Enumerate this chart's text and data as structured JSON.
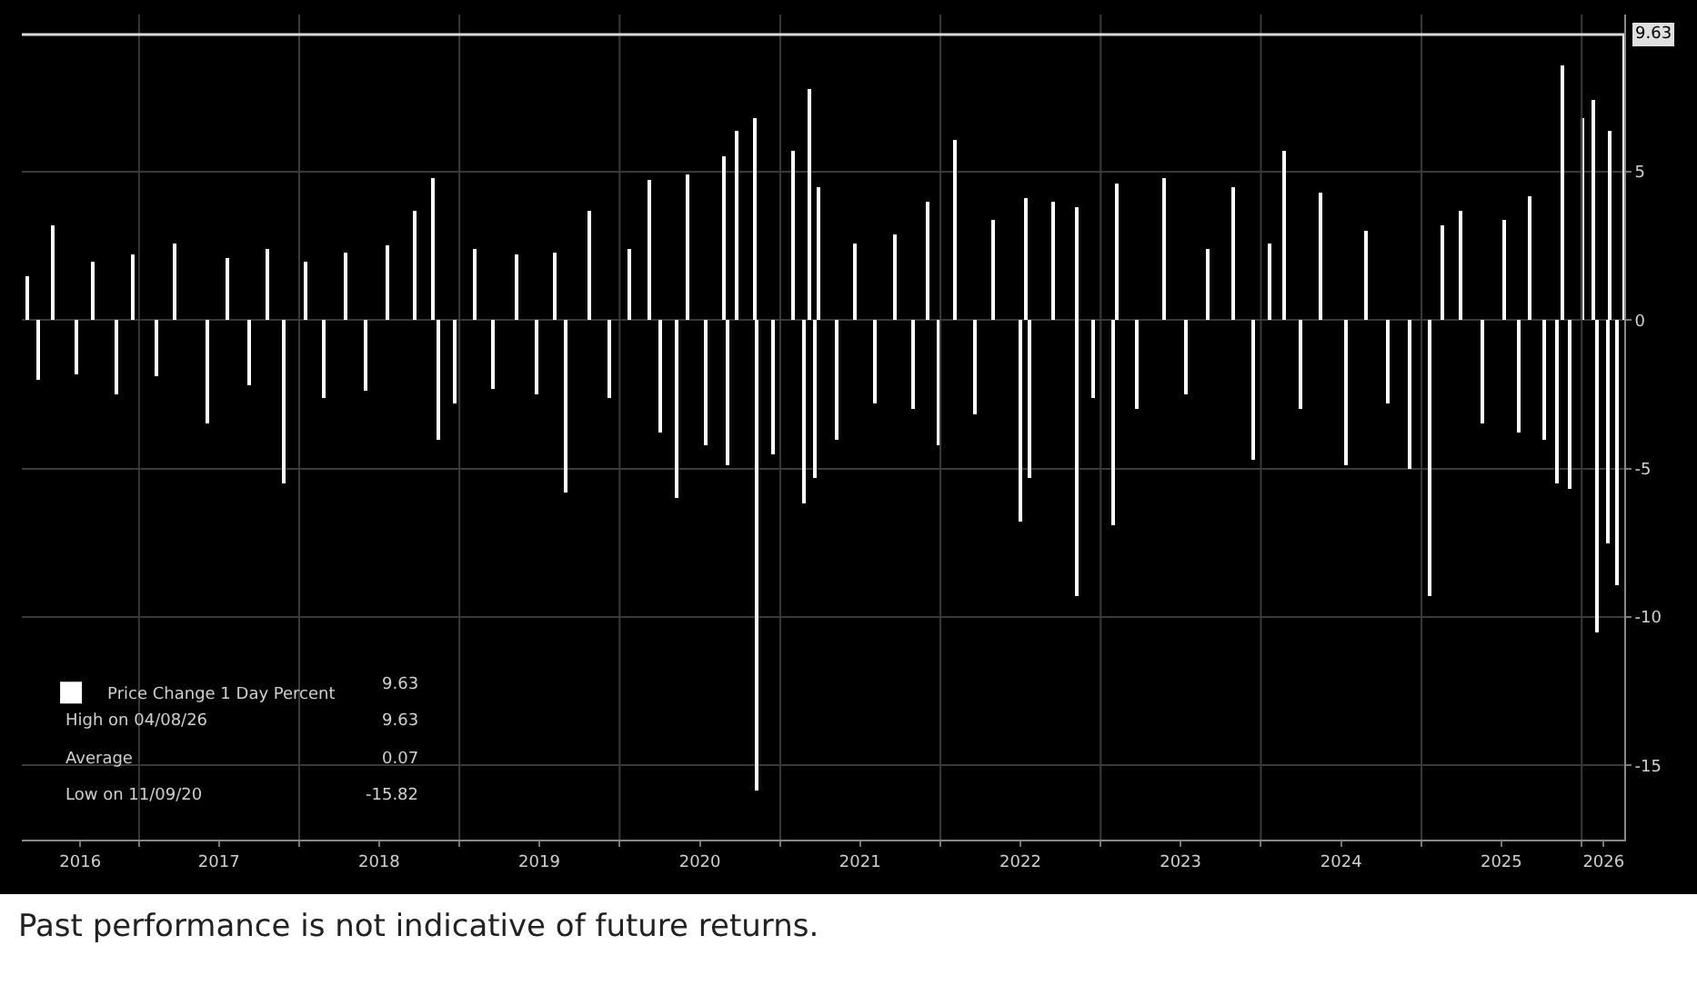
{
  "chart_data": {
    "type": "bar",
    "x": [
      "2016-04-20",
      "2016-05-15",
      "2016-06-20",
      "2016-08-10",
      "2016-09-20",
      "2016-11-10",
      "2016-12-20",
      "2017-02-10",
      "2017-03-25",
      "2017-06-06",
      "2017-07-20",
      "2017-09-10",
      "2017-10-20",
      "2017-11-27",
      "2018-01-15",
      "2018-02-28",
      "2018-04-15",
      "2018-06-01",
      "2018-07-20",
      "2018-09-23",
      "2018-11-02",
      "2018-11-15",
      "2018-12-20",
      "2019-02-05",
      "2019-03-20",
      "2019-05-10",
      "2019-06-25",
      "2019-08-05",
      "2019-09-02",
      "2019-10-23",
      "2019-12-10",
      "2020-01-25",
      "2020-03-11",
      "2020-04-05",
      "2020-05-12",
      "2020-06-06",
      "2020-07-15",
      "2020-08-24",
      "2020-09-02",
      "2020-09-23",
      "2020-11-04",
      "2020-11-09",
      "2020-12-15",
      "2021-01-30",
      "2021-02-24",
      "2021-03-07",
      "2021-03-20",
      "2021-03-28",
      "2021-05-08",
      "2021-06-20",
      "2021-08-05",
      "2021-09-20",
      "2021-11-01",
      "2021-12-05",
      "2021-12-29",
      "2022-02-03",
      "2022-03-20",
      "2022-05-01",
      "2022-07-02",
      "2022-07-13",
      "2022-07-22",
      "2022-09-14",
      "2022-11-06",
      "2022-11-10",
      "2022-12-15",
      "2023-01-30",
      "2023-02-07",
      "2023-03-25",
      "2023-05-26",
      "2023-07-15",
      "2023-09-01",
      "2023-10-31",
      "2023-12-14",
      "2024-01-20",
      "2024-02-23",
      "2024-04-01",
      "2024-05-16",
      "2024-07-13",
      "2024-08-30",
      "2024-10-15",
      "2024-12-06",
      "2025-01-22",
      "2025-02-20",
      "2025-04-02",
      "2025-05-20",
      "2025-07-10",
      "2025-08-10",
      "2025-09-06",
      "2025-10-10",
      "2025-11-06",
      "2025-11-20",
      "2025-12-06",
      "2026-01-04",
      "2026-01-28",
      "2026-02-04",
      "2026-03-03",
      "2026-03-06",
      "2026-03-22",
      "2026-04-08"
    ],
    "series": [
      {
        "name": "Price Change 1 Day Percent",
        "color": "#ffffff",
        "values": [
          1.5,
          -2.0,
          3.2,
          -1.8,
          2.0,
          -2.5,
          2.2,
          -1.9,
          2.6,
          -3.5,
          2.1,
          -2.2,
          2.4,
          -5.5,
          2.0,
          -2.6,
          2.3,
          -2.4,
          2.5,
          3.7,
          4.8,
          -4.0,
          -2.8,
          2.4,
          -2.3,
          2.2,
          -2.5,
          2.3,
          -5.8,
          3.7,
          -2.6,
          2.4,
          4.7,
          -3.8,
          -6.0,
          4.9,
          -4.2,
          5.5,
          -4.9,
          6.4,
          6.8,
          -15.82,
          -4.5,
          5.7,
          -6.2,
          7.8,
          -5.3,
          4.5,
          -4.0,
          2.6,
          -2.8,
          2.9,
          -3.0,
          4.0,
          -4.2,
          6.1,
          -3.2,
          3.4,
          -6.8,
          4.1,
          -5.3,
          4.0,
          -9.3,
          3.8,
          -2.6,
          -6.9,
          4.6,
          -3.0,
          4.8,
          -2.5,
          2.4,
          4.5,
          -4.7,
          2.6,
          5.7,
          -3.0,
          4.3,
          -4.9,
          3.0,
          -2.8,
          -5.0,
          -9.3,
          3.2,
          3.7,
          -3.5,
          3.4,
          -3.8,
          4.2,
          -4.0,
          -5.5,
          8.6,
          -5.7,
          6.8,
          7.4,
          -10.5,
          -7.5,
          6.4,
          -8.9,
          9.63
        ]
      }
    ],
    "xlim": [
      "2016-04-09",
      "2026-04-08"
    ],
    "xticks": [
      {
        "value": "2016-08-20",
        "label": "2016"
      },
      {
        "value": "2017-01-01",
        "label": null
      },
      {
        "value": "2017-07-02",
        "label": "2017"
      },
      {
        "value": "2018-01-01",
        "label": null
      },
      {
        "value": "2018-07-02",
        "label": "2018"
      },
      {
        "value": "2019-01-01",
        "label": null
      },
      {
        "value": "2019-07-02",
        "label": "2019"
      },
      {
        "value": "2020-01-01",
        "label": null
      },
      {
        "value": "2020-07-02",
        "label": "2020"
      },
      {
        "value": "2021-01-01",
        "label": null
      },
      {
        "value": "2021-07-02",
        "label": "2021"
      },
      {
        "value": "2022-01-01",
        "label": null
      },
      {
        "value": "2022-07-02",
        "label": "2022"
      },
      {
        "value": "2023-01-01",
        "label": null
      },
      {
        "value": "2023-07-02",
        "label": "2023"
      },
      {
        "value": "2024-01-01",
        "label": null
      },
      {
        "value": "2024-07-02",
        "label": "2024"
      },
      {
        "value": "2025-01-01",
        "label": null
      },
      {
        "value": "2025-07-02",
        "label": "2025"
      },
      {
        "value": "2026-01-01",
        "label": null
      },
      {
        "value": "2026-02-20",
        "label": "2026"
      }
    ],
    "ylim": [
      -17.5,
      10.3
    ],
    "yticks": [
      -15,
      -10,
      -5,
      0,
      5
    ],
    "grid": true,
    "legend": "bottom left",
    "ref_lines": [
      {
        "axis": "y",
        "value": 9.63,
        "label": "9.63",
        "color": "#d9d9d9"
      }
    ],
    "annotations": [
      "9.63",
      "High on 04/08/26",
      "9.63",
      "Average",
      "0.07",
      "Low on 11/09/20",
      "-15.82",
      "Past performance is not indicative of future returns."
    ]
  }
}
